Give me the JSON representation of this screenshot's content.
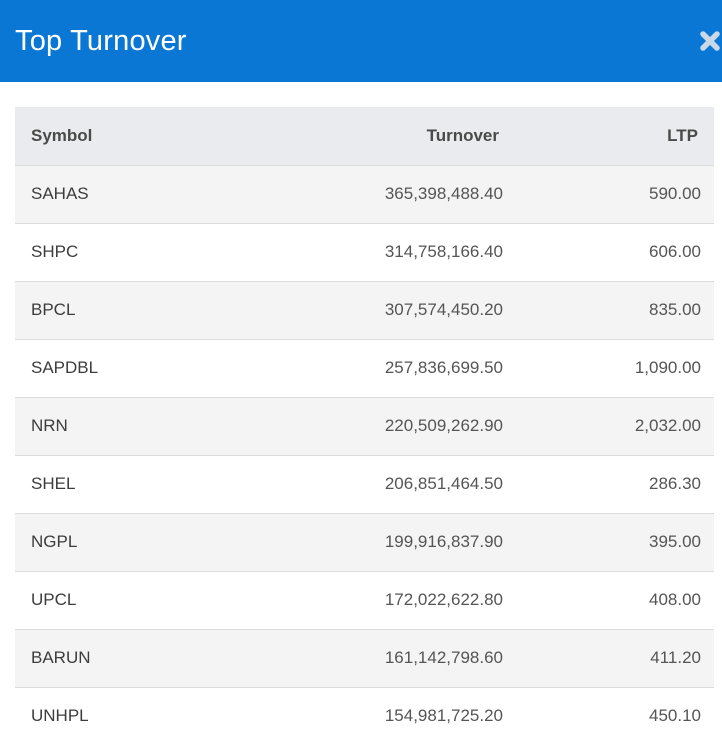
{
  "modal": {
    "title": "Top Turnover",
    "close_icon": "close-x-icon"
  },
  "table": {
    "columns": [
      "Symbol",
      "Turnover",
      "LTP"
    ],
    "rows": [
      {
        "symbol": "SAHAS",
        "turnover": "365,398,488.40",
        "ltp": "590.00"
      },
      {
        "symbol": "SHPC",
        "turnover": "314,758,166.40",
        "ltp": "606.00"
      },
      {
        "symbol": "BPCL",
        "turnover": "307,574,450.20",
        "ltp": "835.00"
      },
      {
        "symbol": "SAPDBL",
        "turnover": "257,836,699.50",
        "ltp": "1,090.00"
      },
      {
        "symbol": "NRN",
        "turnover": "220,509,262.90",
        "ltp": "2,032.00"
      },
      {
        "symbol": "SHEL",
        "turnover": "206,851,464.50",
        "ltp": "286.30"
      },
      {
        "symbol": "NGPL",
        "turnover": "199,916,837.90",
        "ltp": "395.00"
      },
      {
        "symbol": "UPCL",
        "turnover": "172,022,622.80",
        "ltp": "408.00"
      },
      {
        "symbol": "BARUN",
        "turnover": "161,142,798.60",
        "ltp": "411.20"
      },
      {
        "symbol": "UNHPL",
        "turnover": "154,981,725.20",
        "ltp": "450.10"
      }
    ]
  },
  "colors": {
    "header_bg": "#0a77d5",
    "header_text": "#ffffff",
    "close_icon": "#c9d9ea",
    "table_head_bg": "#e9ebee",
    "row_stripe": "#f4f4f4"
  }
}
